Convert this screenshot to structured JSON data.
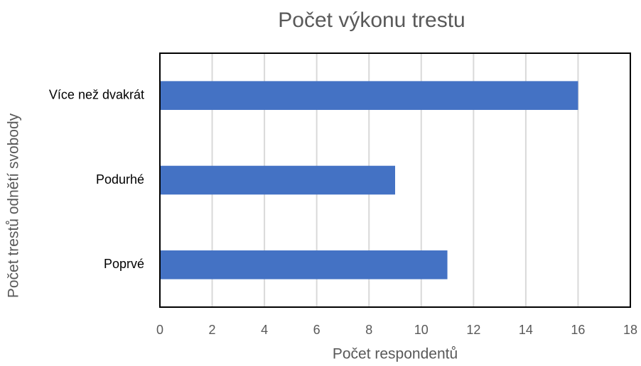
{
  "chart_data": {
    "type": "bar",
    "orientation": "horizontal",
    "title": "Počet výkonu trestu",
    "x_label": "Počet respondentů",
    "y_label": "Počet trestů odnětí svobody",
    "categories": [
      "Více než dvakrát",
      "Podurhé",
      "Poprvé"
    ],
    "values": [
      16,
      9,
      11
    ],
    "color": "#4472c4",
    "xlim": [
      0,
      18
    ],
    "xticks": [
      0,
      2,
      4,
      6,
      8,
      10,
      12,
      14,
      16,
      18
    ],
    "grid": true
  }
}
